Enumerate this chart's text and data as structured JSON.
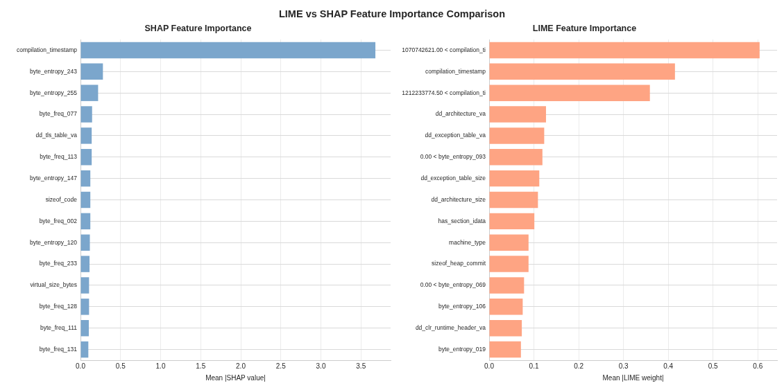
{
  "chart_data": [
    {
      "type": "bar",
      "orientation": "horizontal",
      "title": "SHAP Feature Importance",
      "xlabel": "Mean |SHAP value|",
      "annotations": [
        "LIME vs SHAP Feature Importance Comparison"
      ],
      "categories": [
        "compilation_timestamp",
        "byte_entropy_243",
        "byte_entropy_255",
        "byte_freq_077",
        "dd_tls_table_va",
        "byte_freq_113",
        "byte_entropy_147",
        "sizeof_code",
        "byte_freq_002",
        "byte_entropy_120",
        "byte_freq_233",
        "virtual_size_bytes",
        "byte_freq_128",
        "byte_freq_111",
        "byte_freq_131"
      ],
      "values": [
        3.68,
        0.28,
        0.22,
        0.145,
        0.14,
        0.14,
        0.123,
        0.123,
        0.123,
        0.117,
        0.113,
        0.107,
        0.107,
        0.104,
        0.098
      ],
      "color": "#7ba6cc",
      "xlim": [
        0,
        3.87
      ],
      "xticks": [
        {
          "value": 0,
          "label": "0.0"
        },
        {
          "value": 0.5,
          "label": "0.5"
        },
        {
          "value": 1,
          "label": "1.0"
        },
        {
          "value": 1.5,
          "label": "1.5"
        },
        {
          "value": 2,
          "label": "2.0"
        },
        {
          "value": 2.5,
          "label": "2.5"
        },
        {
          "value": 3,
          "label": "3.0"
        },
        {
          "value": 3.5,
          "label": "3.5"
        }
      ],
      "grid": true,
      "legend": false
    },
    {
      "type": "bar",
      "orientation": "horizontal",
      "title": "LIME Feature Importance",
      "xlabel": "Mean |LIME weight|",
      "categories": [
        "1070742621.00 < compilation_ti",
        "compilation_timestamp",
        "1212233774.50 < compilation_ti",
        "dd_architecture_va",
        "dd_exception_table_va",
        "0.00 < byte_entropy_093",
        "dd_exception_table_size",
        "dd_architecture_size",
        "has_section_idata",
        "machine_type",
        "sizeof_heap_commit",
        "0.00 < byte_entropy_069",
        "byte_entropy_106",
        "dd_clr_runtime_header_va",
        "byte_entropy_019"
      ],
      "values": [
        0.604,
        0.415,
        0.359,
        0.127,
        0.123,
        0.119,
        0.112,
        0.109,
        0.101,
        0.088,
        0.088,
        0.078,
        0.075,
        0.073,
        0.071
      ],
      "color": "#fea483",
      "xlim": [
        0,
        0.643
      ],
      "xticks": [
        {
          "value": 0,
          "label": "0.0"
        },
        {
          "value": 0.1,
          "label": "0.1"
        },
        {
          "value": 0.2,
          "label": "0.2"
        },
        {
          "value": 0.3,
          "label": "0.3"
        },
        {
          "value": 0.4,
          "label": "0.4"
        },
        {
          "value": 0.5,
          "label": "0.5"
        },
        {
          "value": 0.6,
          "label": "0.6"
        }
      ],
      "grid": true,
      "legend": false
    }
  ]
}
